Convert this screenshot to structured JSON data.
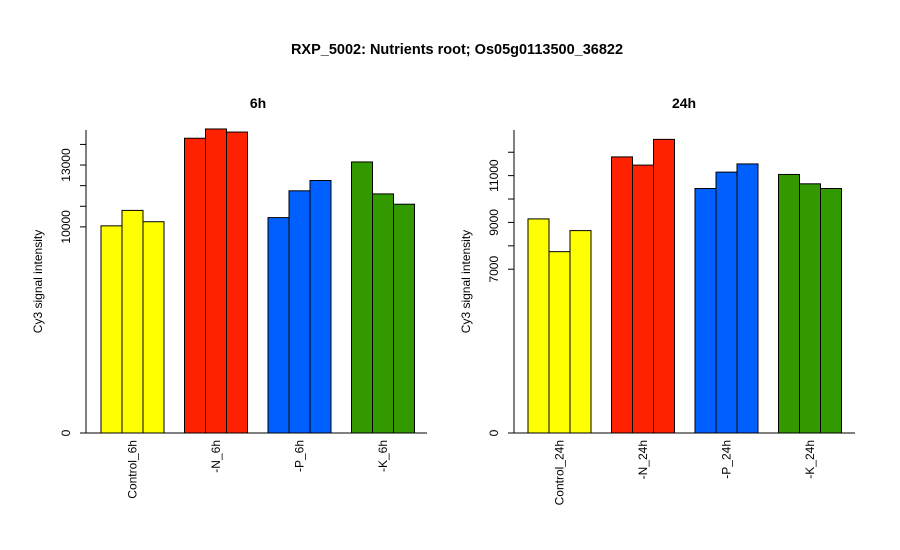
{
  "title": "RXP_5002: Nutrients root; Os05g0113500_36822",
  "chart_data": [
    {
      "type": "bar",
      "title": "6h",
      "ylabel": "Cy3 signal intensity",
      "xlabel": "",
      "ylim": [
        0,
        14700
      ],
      "yticks": [
        0,
        10000,
        13000
      ],
      "grid": false,
      "groups": [
        {
          "label": "Control_6h",
          "color": "#ffff00",
          "values": [
            10050,
            10800,
            10250
          ]
        },
        {
          "label": "-N_6h",
          "color": "#ff2200",
          "values": [
            14300,
            14750,
            14600
          ]
        },
        {
          "label": "-P_6h",
          "color": "#0060ff",
          "values": [
            10450,
            11750,
            12250
          ]
        },
        {
          "label": "-K_6h",
          "color": "#339900",
          "values": [
            13150,
            11600,
            11100
          ]
        }
      ]
    },
    {
      "type": "bar",
      "title": "24h",
      "ylabel": "Cy3 signal intensity",
      "xlabel": "",
      "ylim": [
        0,
        12950
      ],
      "yticks": [
        0,
        7000,
        9000,
        11000
      ],
      "grid": false,
      "groups": [
        {
          "label": "Control_24h",
          "color": "#ffff00",
          "values": [
            9150,
            7750,
            8650
          ]
        },
        {
          "label": "-N_24h",
          "color": "#ff2200",
          "values": [
            11800,
            11450,
            12550
          ]
        },
        {
          "label": "-P_24h",
          "color": "#0060ff",
          "values": [
            10450,
            11150,
            11500
          ]
        },
        {
          "label": "-K_24h",
          "color": "#339900",
          "values": [
            11050,
            10650,
            10450
          ]
        }
      ]
    }
  ]
}
